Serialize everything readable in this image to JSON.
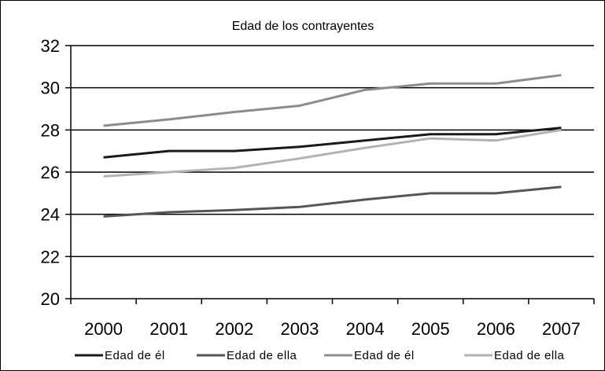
{
  "chart_data": {
    "type": "line",
    "title": "Edad de los contrayentes",
    "categories": [
      "2000",
      "2001",
      "2002",
      "2003",
      "2004",
      "2005",
      "2006",
      "2007"
    ],
    "ylim": [
      20,
      32
    ],
    "yticks": [
      "20",
      "22",
      "24",
      "26",
      "28",
      "30",
      "32"
    ],
    "grid": true,
    "legend_position": "bottom",
    "series": [
      {
        "name": "Edad de él",
        "color": "#1a1a1a",
        "values": [
          26.7,
          27.0,
          27.0,
          27.2,
          27.5,
          27.8,
          27.8,
          28.1
        ]
      },
      {
        "name": "Edad de ella",
        "color": "#555555",
        "values": [
          23.9,
          24.1,
          24.2,
          24.35,
          24.7,
          25.0,
          25.0,
          25.3
        ]
      },
      {
        "name": "Edad de él",
        "color": "#8c8c8c",
        "values": [
          28.2,
          28.5,
          28.85,
          29.15,
          29.9,
          30.2,
          30.2,
          30.6
        ]
      },
      {
        "name": "Edad de ella",
        "color": "#b3b3b3",
        "values": [
          25.8,
          26.0,
          26.2,
          26.65,
          27.15,
          27.6,
          27.5,
          28.0
        ]
      }
    ]
  }
}
